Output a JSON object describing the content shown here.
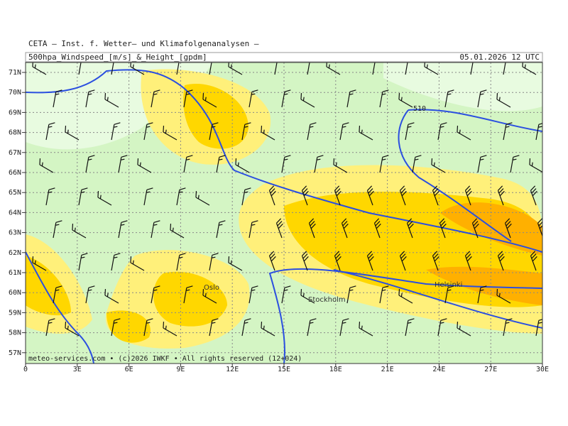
{
  "header": {
    "institution": "CETA — Inst. f. Wetter— und Klimafolgenanalysen —",
    "product": "500hpa_Windspeed_[m/s]_&_Height_[gpdm]",
    "valid": "05.01.2026 12 UTC"
  },
  "axes": {
    "x_labels": [
      "0",
      "3E",
      "6E",
      "9E",
      "12E",
      "15E",
      "18E",
      "21E",
      "24E",
      "27E",
      "30E"
    ],
    "y_labels": [
      "71N",
      "70N",
      "69N",
      "68N",
      "67N",
      "66N",
      "65N",
      "64N",
      "63N",
      "62N",
      "61N",
      "60N",
      "59N",
      "58N",
      "57N"
    ]
  },
  "cities": [
    "Oslo",
    "Stockholm",
    "Helsinki"
  ],
  "contour_label": "510",
  "footer": "meteo-services.com • (c)2026 IWKF • All rights reserved (12+024)"
}
